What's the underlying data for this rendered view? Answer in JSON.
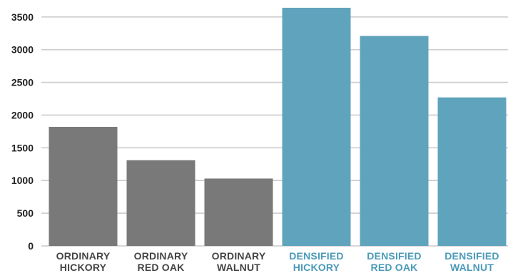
{
  "chart_data": {
    "type": "bar",
    "title": "",
    "xlabel": "",
    "ylabel": "",
    "categories": [
      [
        "ORDINARY",
        "HICKORY"
      ],
      [
        "ORDINARY",
        "RED OAK"
      ],
      [
        "ORDINARY",
        "WALNUT"
      ],
      [
        "DENSIFIED",
        "HICKORY"
      ],
      [
        "DENSIFIED",
        "RED OAK"
      ],
      [
        "DENSIFIED",
        "WALNUT"
      ]
    ],
    "values": [
      1820,
      1310,
      1030,
      3640,
      3210,
      2270
    ],
    "ylim": [
      0,
      3650
    ],
    "yticks": [
      0,
      500,
      1000,
      1500,
      2000,
      2500,
      3000,
      3500
    ],
    "grid": true,
    "colors": {
      "ordinary_bar": "#797979",
      "densified_bar": "#60a3bc",
      "ordinary_label": "#444444",
      "densified_label": "#4a9ab8",
      "grid": "#cccccc"
    },
    "bar_colors": [
      "ordinary",
      "ordinary",
      "ordinary",
      "densified",
      "densified",
      "densified"
    ]
  }
}
